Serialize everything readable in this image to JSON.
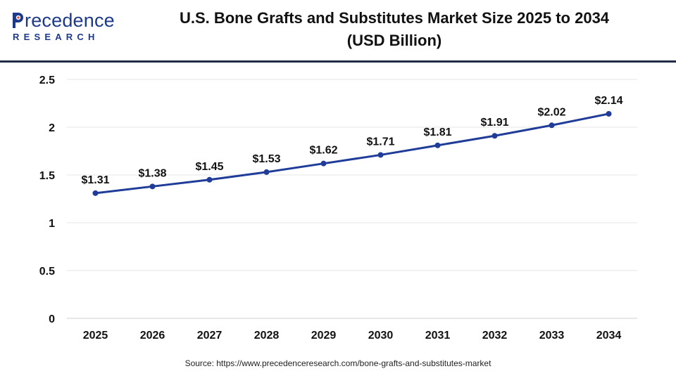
{
  "brand": {
    "logo_top": "recedence",
    "logo_bottom": "RESEARCH",
    "colors": {
      "primary": "#1d3a8a",
      "line": "#1f3c99",
      "rule": "#1f2a44"
    }
  },
  "header": {
    "title_line1": "U.S. Bone Grafts and Substitutes Market Size 2025 to 2034",
    "title_line2": "(USD Billion)"
  },
  "chart_data": {
    "type": "line",
    "title": "U.S. Bone Grafts and Substitutes Market Size 2025 to 2034 (USD Billion)",
    "x": [
      "2025",
      "2026",
      "2027",
      "2028",
      "2029",
      "2030",
      "2031",
      "2032",
      "2033",
      "2034"
    ],
    "series": [
      {
        "values": [
          1.31,
          1.38,
          1.45,
          1.53,
          1.62,
          1.71,
          1.81,
          1.91,
          2.02,
          2.14
        ],
        "labels": [
          "$1.31",
          "$1.38",
          "$1.45",
          "$1.53",
          "$1.62",
          "$1.71",
          "$1.81",
          "$1.91",
          "$2.02",
          "$2.14"
        ],
        "color": "#1f3c99"
      }
    ],
    "yticks": [
      "0",
      "0.5",
      "1",
      "1.5",
      "2",
      "2.5"
    ],
    "ylim": [
      0,
      2.5
    ],
    "grid": true,
    "legend": "none"
  },
  "footer": {
    "source": "Source: https://www.precedenceresearch.com/bone-grafts-and-substitutes-market"
  }
}
